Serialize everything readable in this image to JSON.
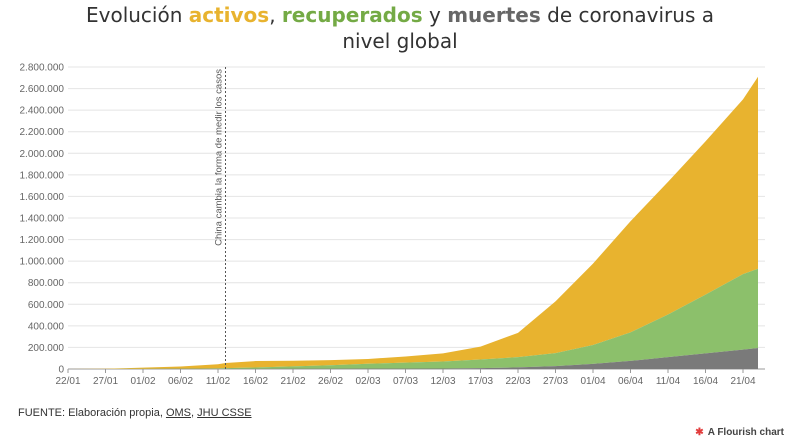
{
  "title": {
    "prefix": "Evolución ",
    "word_active": "activos",
    "comma": ", ",
    "word_recovered": "recuperados",
    "mid": " y ",
    "word_deaths": "muertes",
    "suffix_line1": " de coronavirus a",
    "line2": "nivel global"
  },
  "colors": {
    "active": "#e8b32f",
    "recovered": "#8cc06b",
    "deaths": "#7a7a7a"
  },
  "source": {
    "prefix": "FUENTE: Elaboración propia, ",
    "link1": "OMS",
    "sep": ", ",
    "link2": "JHU CSSE"
  },
  "brand": {
    "icon": "flourish-star-icon",
    "label": "A Flourish chart"
  },
  "chart_data": {
    "type": "area",
    "stacked": true,
    "x_tick_labels": [
      "22/01",
      "27/01",
      "01/02",
      "06/02",
      "11/02",
      "16/02",
      "21/02",
      "26/02",
      "02/03",
      "07/03",
      "12/03",
      "17/03",
      "22/03",
      "27/03",
      "01/04",
      "06/04",
      "11/04",
      "16/04",
      "21/04"
    ],
    "y_tick_labels": [
      "0",
      "200.000",
      "400.000",
      "600.000",
      "800.000",
      "1.000.000",
      "1.200.000",
      "1.400.000",
      "1.600.000",
      "1.800.000",
      "2.000.000",
      "2.200.000",
      "2.400.000",
      "2.600.000",
      "2.800.000"
    ],
    "ylim": [
      0,
      2800000
    ],
    "grid": true,
    "annotation": {
      "x": "12/02",
      "text": "China cambia la forma de medir los casos"
    },
    "x": [
      "22/01",
      "27/01",
      "01/02",
      "06/02",
      "11/02",
      "12/02",
      "16/02",
      "21/02",
      "26/02",
      "02/03",
      "07/03",
      "12/03",
      "17/03",
      "22/03",
      "27/03",
      "01/04",
      "06/04",
      "11/04",
      "16/04",
      "21/04",
      "23/04"
    ],
    "series": [
      {
        "name": "muertes",
        "values": [
          0,
          100,
          300,
          600,
          1000,
          1200,
          1700,
          2300,
          2800,
          3100,
          3500,
          4600,
          8000,
          15000,
          27000,
          47000,
          75000,
          110000,
          145000,
          180000,
          195000
        ]
      },
      {
        "name": "recuperados",
        "values": [
          0,
          300,
          900,
          2500,
          5000,
          6500,
          12000,
          22000,
          32000,
          45000,
          56000,
          65000,
          80000,
          95000,
          120000,
          175000,
          265000,
          395000,
          545000,
          700000,
          735000
        ]
      },
      {
        "name": "activos",
        "values": [
          500,
          2200,
          11000,
          20000,
          38000,
          48000,
          60000,
          52000,
          47000,
          45000,
          56000,
          75000,
          120000,
          225000,
          480000,
          755000,
          1030000,
          1230000,
          1420000,
          1620000,
          1780000
        ]
      }
    ]
  }
}
